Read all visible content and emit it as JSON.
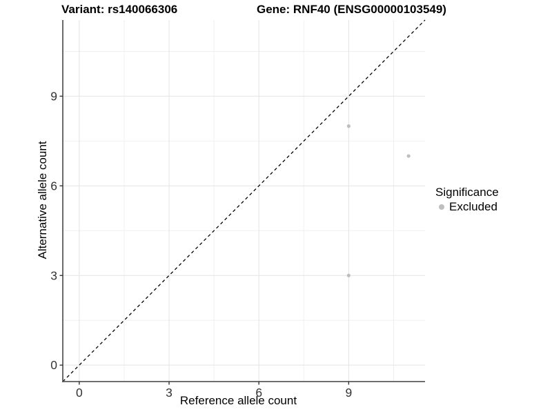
{
  "header": {
    "variant_title": "Variant: rs140066306",
    "gene_title": "Gene: RNF40 (ENSG00000103549)"
  },
  "legend": {
    "title": "Significance"
  },
  "colors": {
    "background": "#ffffff",
    "grid_major": "#e3e3e3",
    "grid_minor": "#f0f0f0",
    "axis_line": "#595959",
    "tick_mark": "#333333",
    "tick_label": "#333333",
    "identity_line": "#000000",
    "excluded_point": "#bebebe"
  },
  "chart_data": {
    "type": "scatter",
    "title": "Variant: rs140066306 | Gene: RNF40 (ENSG00000103549)",
    "xlabel": "Reference allele count",
    "ylabel": "Alternative allele count",
    "xlim": [
      -0.55,
      11.55
    ],
    "ylim": [
      -0.55,
      11.55
    ],
    "x_ticks": [
      0,
      3,
      6,
      9
    ],
    "y_ticks": [
      0,
      3,
      6,
      9
    ],
    "x_minor": [
      1.5,
      4.5,
      7.5,
      10.5
    ],
    "y_minor": [
      1.5,
      4.5,
      7.5,
      10.5
    ],
    "grid": "major+minor",
    "legend_position": "right",
    "legend_title": "Significance",
    "reference_line": {
      "kind": "identity y=x",
      "style": "dashed",
      "color": "#000000"
    },
    "series": [
      {
        "name": "Excluded",
        "color": "#bebebe",
        "point_radius": 2.6,
        "points": [
          [
            9,
            8
          ],
          [
            11,
            7
          ],
          [
            9,
            3
          ]
        ]
      }
    ]
  }
}
